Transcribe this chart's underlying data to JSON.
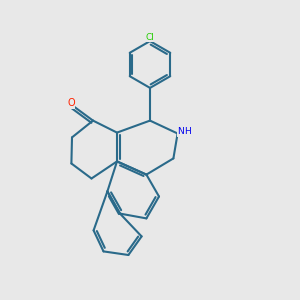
{
  "bg_color": "#e8e8e8",
  "bond_color": "#2a6a8a",
  "bond_width": 1.5,
  "atom_colors": {
    "O": "#ff2200",
    "N": "#0000ee",
    "Cl": "#22cc00"
  },
  "figsize": [
    3.0,
    3.0
  ],
  "dpi": 100,
  "xlim": [
    0,
    10
  ],
  "ylim": [
    0,
    10
  ]
}
